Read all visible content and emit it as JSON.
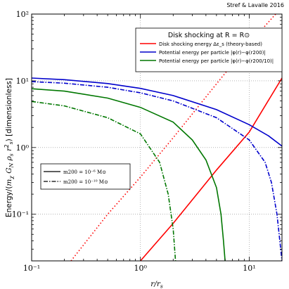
{
  "chart_data": {
    "type": "line",
    "credit": "Stref & Lavalle 2016",
    "xlabel_main": "r/r",
    "xlabel_sub": "s",
    "ylabel": "Energy/(m  G  ρ  r²) [dimensionless]",
    "ylabel_parts": {
      "prefix": "Energy/(",
      "m": "m",
      "m_sub": "χ",
      "G": "G",
      "G_sub": "N",
      "rho": "ρ",
      "rho_sub": "s",
      "r": "r",
      "r_sub": "s",
      "suffix": ") [dimensionless]"
    },
    "x_scale": "log",
    "y_scale": "log",
    "xlim": [
      0.1,
      20
    ],
    "ylim": [
      0.02,
      100
    ],
    "x_ticks": [
      {
        "value": 0.1,
        "label": "10⁻¹"
      },
      {
        "value": 1,
        "label": "10⁰"
      },
      {
        "value": 10,
        "label": "10¹"
      }
    ],
    "y_ticks": [
      {
        "value": 0.1,
        "label": "10⁻¹"
      },
      {
        "value": 1,
        "label": "10⁰"
      },
      {
        "value": 10,
        "label": "10¹"
      },
      {
        "value": 100,
        "label": "10²"
      }
    ],
    "grid": true,
    "legend_placement": "top-right",
    "legend_title": "Disk shocking at R = R⊙",
    "legend_entries": [
      {
        "label": "Disk shocking energy Δε_s (theory-based)",
        "color": "#ff0000"
      },
      {
        "label": "Potential energy per particle |φ(r)−φ(r200)|",
        "color": "#0000cc"
      },
      {
        "label": "Potential energy per particle |φ(r)−φ(r200/10)|",
        "color": "#007700"
      }
    ],
    "style_legend_placement": "middle-left",
    "style_legend": [
      {
        "label": "m200 = 10⁻⁶ M⊙",
        "linestyle": "solid"
      },
      {
        "label": "m200 = 10⁻¹⁰ M⊙",
        "linestyle": "dashdot"
      }
    ],
    "colors": {
      "red": "#ff0000",
      "blue": "#0000cc",
      "green": "#007700"
    },
    "series": [
      {
        "color": "red",
        "linestyle": "solid",
        "x": [
          1.0,
          2.0,
          5.0,
          10.0,
          20.0
        ],
        "y": [
          0.02,
          0.073,
          0.46,
          1.7,
          11.0
        ]
      },
      {
        "color": "red",
        "linestyle": "dotted",
        "x": [
          0.23,
          0.5,
          1.0,
          2.0,
          5.0,
          10.0,
          17.5
        ],
        "y": [
          0.02,
          0.1,
          0.36,
          1.4,
          9.0,
          36.0,
          100.0
        ]
      },
      {
        "color": "blue",
        "linestyle": "solid",
        "x": [
          0.1,
          0.2,
          0.5,
          1.0,
          2.0,
          5.0,
          10.0,
          15.0,
          20.0
        ],
        "y": [
          11.0,
          10.4,
          9.1,
          7.7,
          6.0,
          3.7,
          2.2,
          1.5,
          1.05
        ]
      },
      {
        "color": "blue",
        "linestyle": "dashdot",
        "x": [
          0.1,
          0.2,
          0.5,
          1.0,
          2.0,
          5.0,
          10.0,
          14.0,
          16.0,
          18.0,
          20.0
        ],
        "y": [
          9.7,
          9.2,
          8.0,
          6.6,
          5.0,
          2.8,
          1.3,
          0.6,
          0.3,
          0.1,
          0.02
        ]
      },
      {
        "color": "green",
        "linestyle": "solid",
        "x": [
          0.1,
          0.2,
          0.5,
          1.0,
          2.0,
          3.0,
          4.0,
          5.0,
          5.5,
          5.8,
          6.0
        ],
        "y": [
          7.6,
          7.0,
          5.5,
          4.0,
          2.4,
          1.3,
          0.65,
          0.25,
          0.1,
          0.04,
          0.02
        ]
      },
      {
        "color": "green",
        "linestyle": "dashdot",
        "x": [
          0.1,
          0.2,
          0.5,
          1.0,
          1.5,
          1.8,
          2.0,
          2.1
        ],
        "y": [
          4.9,
          4.2,
          2.8,
          1.6,
          0.6,
          0.2,
          0.06,
          0.02
        ]
      }
    ]
  }
}
